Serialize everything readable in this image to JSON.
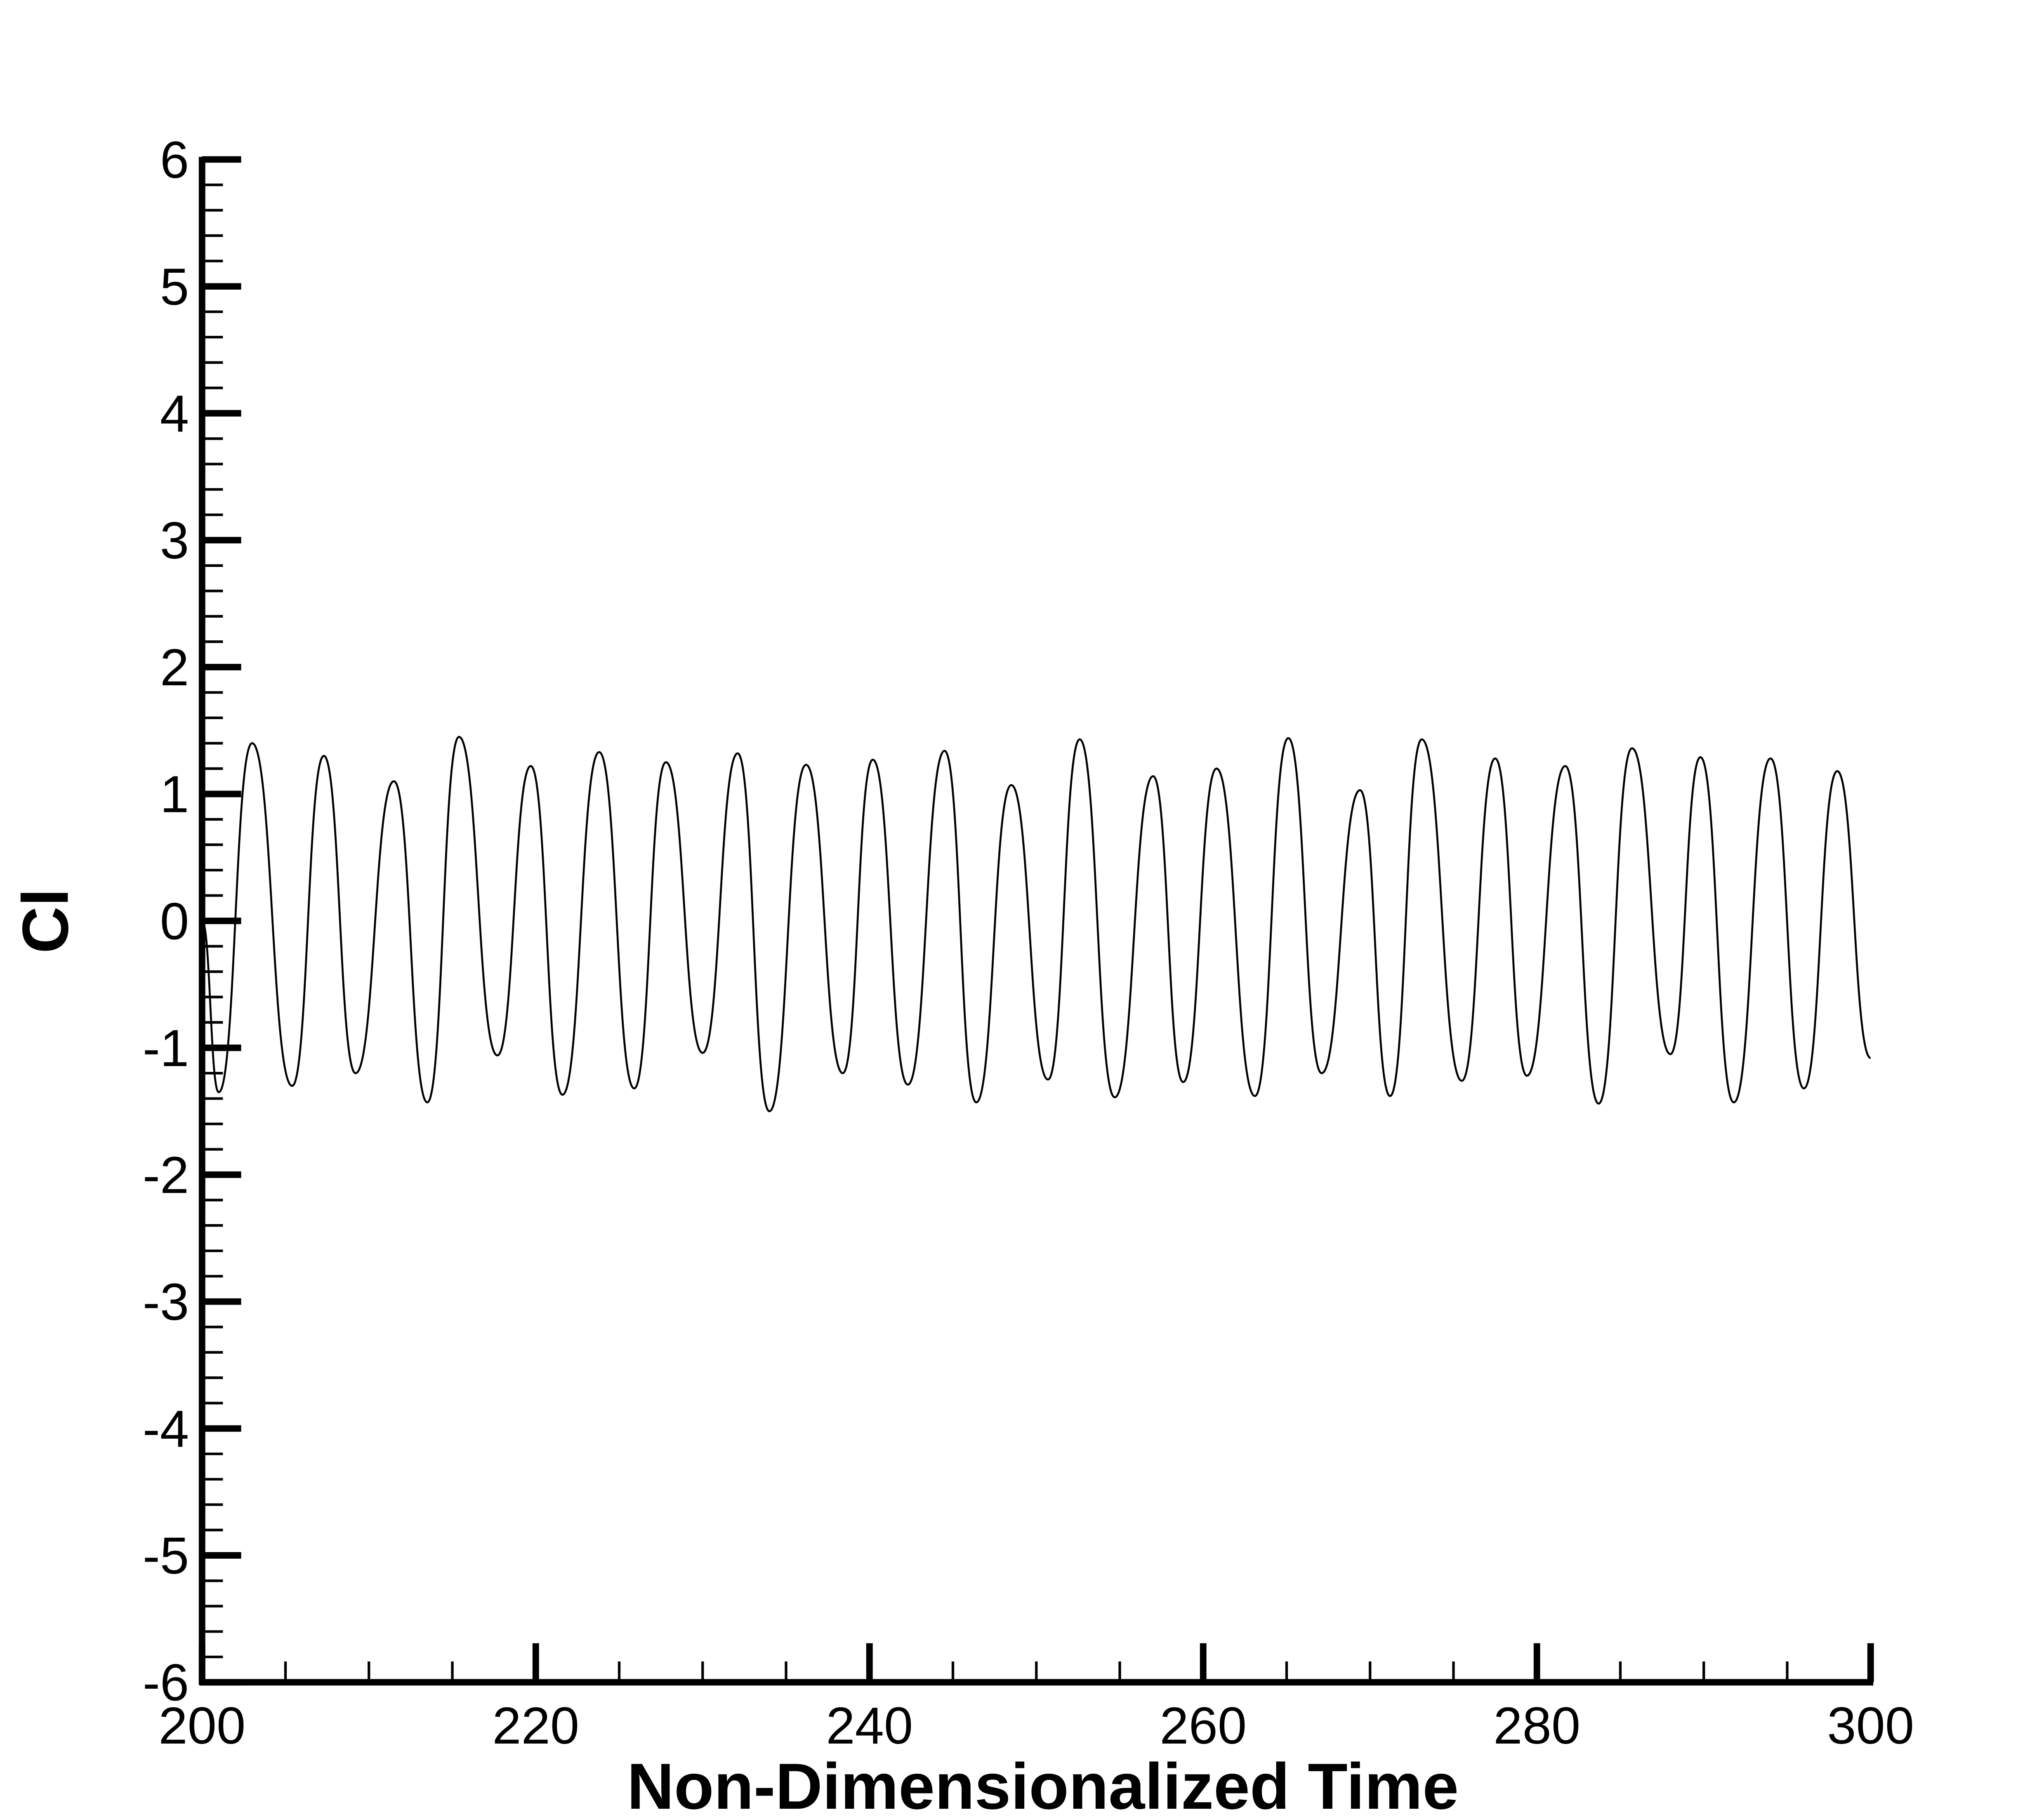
{
  "chart_data": {
    "type": "line",
    "xlabel": "Non-Dimensionalized Time",
    "ylabel": "Cl",
    "x": [
      200,
      201.0,
      203.0,
      205.4,
      207.3,
      209.2,
      211.5,
      213.5,
      215.4,
      217.7,
      219.7,
      221.6,
      223.8,
      225.9,
      227.8,
      230.0,
      232.1,
      234.0,
      236.2,
      238.4,
      240.2,
      242.3,
      244.5,
      246.4,
      248.5,
      250.7,
      252.6,
      254.7,
      257.0,
      258.8,
      260.8,
      263.1,
      265.1,
      267.1,
      269.4,
      271.2,
      273.1,
      275.5,
      277.5,
      279.4,
      281.7,
      283.7,
      285.7,
      288.0,
      289.8,
      291.8,
      294.0,
      296.0,
      298.0,
      300
    ],
    "values": [
      0,
      -1.35,
      1.4,
      -1.3,
      1.3,
      -1.2,
      1.1,
      -1.43,
      1.45,
      -1.06,
      1.22,
      -1.37,
      1.33,
      -1.32,
      1.25,
      -1.04,
      1.32,
      -1.5,
      1.23,
      -1.2,
      1.27,
      -1.29,
      1.34,
      -1.43,
      1.07,
      -1.25,
      1.43,
      -1.39,
      1.14,
      -1.27,
      1.2,
      -1.38,
      1.44,
      -1.2,
      1.03,
      -1.38,
      1.43,
      -1.26,
      1.28,
      -1.22,
      1.22,
      -1.44,
      1.36,
      -1.05,
      1.29,
      -1.43,
      1.28,
      -1.32,
      1.18,
      -1.08
    ],
    "color": "#000000",
    "xlim": [
      200,
      300
    ],
    "xticks": [
      200,
      220,
      240,
      260,
      280,
      300
    ],
    "xminorticks": [
      205,
      210,
      215,
      225,
      230,
      235,
      245,
      250,
      255,
      265,
      270,
      275,
      285,
      290,
      295
    ],
    "ylim": [
      -6,
      6
    ],
    "yticks": [
      -6,
      -5,
      -4,
      -3,
      -2,
      -1,
      0,
      1,
      2,
      3,
      4,
      5,
      6
    ],
    "yminorticks": [
      -5.8,
      -5.6,
      -5.4,
      -5.2,
      -4.8,
      -4.6,
      -4.4,
      -4.2,
      -3.8,
      -3.6,
      -3.4,
      -3.2,
      -2.8,
      -2.6,
      -2.4,
      -2.2,
      -1.8,
      -1.6,
      -1.4,
      -1.2,
      -0.8,
      -0.6,
      -0.4,
      -0.2,
      0.2,
      0.4,
      0.6,
      0.8,
      1.2,
      1.4,
      1.6,
      1.8,
      2.2,
      2.4,
      2.6,
      2.8,
      3.2,
      3.4,
      3.6,
      3.8,
      4.2,
      4.4,
      4.6,
      4.8,
      5.2,
      5.4,
      5.6,
      5.8
    ],
    "grid": false
  }
}
